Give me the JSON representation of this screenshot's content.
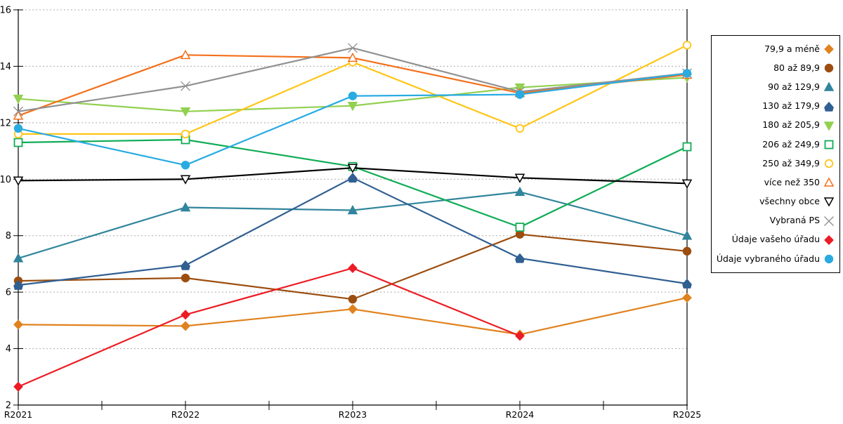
{
  "chart_data": {
    "type": "line",
    "categories": [
      "R2021",
      "R2022",
      "R2023",
      "R2024",
      "R2025"
    ],
    "series": [
      {
        "name": "79,9 a méně",
        "marker": "diamond",
        "fill": "solid",
        "color": "#E0821E",
        "values": [
          4.85,
          4.8,
          5.4,
          4.5,
          5.8
        ]
      },
      {
        "name": "80 až 89,9",
        "marker": "circle",
        "fill": "solid",
        "color": "#9C4E10",
        "values": [
          6.4,
          6.5,
          5.75,
          8.05,
          7.45
        ]
      },
      {
        "name": "90 až 129,9",
        "marker": "triangle-up",
        "fill": "solid",
        "color": "#31859C",
        "values": [
          7.2,
          9.0,
          8.9,
          9.55,
          8.0
        ]
      },
      {
        "name": "130 až 179,9",
        "marker": "pentagon",
        "fill": "solid",
        "color": "#305F92",
        "values": [
          6.25,
          6.95,
          10.05,
          7.2,
          6.3
        ]
      },
      {
        "name": "180 až 205,9",
        "marker": "triangle-down",
        "fill": "solid",
        "color": "#92D050",
        "values": [
          12.85,
          12.4,
          12.6,
          13.25,
          13.6
        ]
      },
      {
        "name": "206 až 249,9",
        "marker": "square",
        "fill": "open",
        "color": "#10AC56",
        "values": [
          11.3,
          11.4,
          10.45,
          8.3,
          11.15
        ]
      },
      {
        "name": "250 až 349,9",
        "marker": "circle",
        "fill": "open",
        "color": "#FFC515",
        "values": [
          11.6,
          11.6,
          14.15,
          11.8,
          14.75
        ]
      },
      {
        "name": "více než 350",
        "marker": "triangle-up",
        "fill": "open",
        "color": "#F3701B",
        "values": [
          12.25,
          14.4,
          14.3,
          13.05,
          13.7
        ]
      },
      {
        "name": "všechny obce",
        "marker": "triangle-down",
        "fill": "open",
        "color": "#000000",
        "values": [
          9.95,
          10.0,
          10.4,
          10.05,
          9.85
        ]
      },
      {
        "name": "Vybraná PS",
        "marker": "x",
        "fill": "line",
        "color": "#909090",
        "values": [
          12.4,
          13.3,
          14.65,
          13.1,
          13.75
        ]
      },
      {
        "name": "Údaje vašeho úřadu",
        "marker": "diamond",
        "fill": "solid",
        "color": "#EC1C24",
        "values": [
          2.65,
          5.2,
          6.85,
          4.45,
          null
        ]
      },
      {
        "name": "Údaje vybraného úřadu",
        "marker": "circle",
        "fill": "solid",
        "color": "#29ABE2",
        "values": [
          11.8,
          10.5,
          12.95,
          13.0,
          13.75
        ]
      }
    ],
    "ylim": [
      2,
      16
    ],
    "y_ticks": [
      2,
      4,
      6,
      8,
      10,
      12,
      14,
      16
    ],
    "xlabel": "",
    "ylabel": "",
    "title": "",
    "grid": "horizontal-dotted",
    "legend_position": "right"
  }
}
